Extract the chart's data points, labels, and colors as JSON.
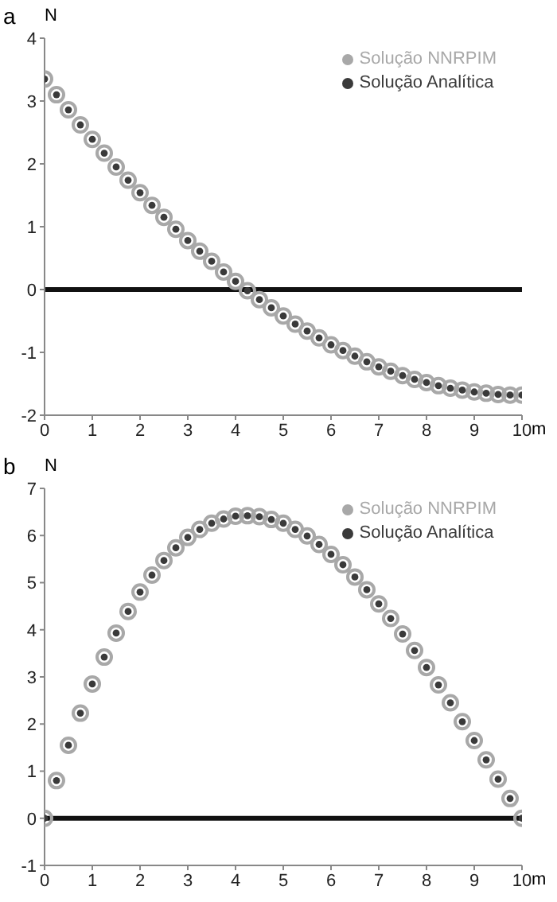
{
  "chart_data": [
    {
      "type": "scatter",
      "title": "a",
      "xlabel": "m",
      "ylabel": "N",
      "x": [
        0,
        0.25,
        0.5,
        0.75,
        1,
        1.25,
        1.5,
        1.75,
        2,
        2.25,
        2.5,
        2.75,
        3,
        3.25,
        3.5,
        3.75,
        4,
        4.25,
        4.5,
        4.75,
        5,
        5.25,
        5.5,
        5.75,
        6,
        6.25,
        6.5,
        6.75,
        7,
        7.25,
        7.5,
        7.75,
        8,
        8.25,
        8.5,
        8.75,
        9,
        9.25,
        9.5,
        9.75,
        10
      ],
      "series": [
        {
          "name": "Solução NNRPIM",
          "color": "#a8a8a8",
          "values": [
            3.35,
            3.1,
            2.86,
            2.62,
            2.39,
            2.17,
            1.95,
            1.74,
            1.54,
            1.34,
            1.15,
            0.96,
            0.78,
            0.61,
            0.45,
            0.28,
            0.13,
            -0.02,
            -0.16,
            -0.29,
            -0.42,
            -0.55,
            -0.66,
            -0.77,
            -0.88,
            -0.97,
            -1.06,
            -1.15,
            -1.23,
            -1.3,
            -1.37,
            -1.43,
            -1.48,
            -1.53,
            -1.57,
            -1.6,
            -1.63,
            -1.65,
            -1.67,
            -1.68,
            -1.68
          ]
        },
        {
          "name": "Solução Analítica",
          "color": "#3a3a3a",
          "values": [
            3.35,
            3.1,
            2.86,
            2.62,
            2.39,
            2.17,
            1.95,
            1.74,
            1.54,
            1.34,
            1.15,
            0.96,
            0.78,
            0.61,
            0.45,
            0.28,
            0.13,
            -0.02,
            -0.16,
            -0.29,
            -0.42,
            -0.55,
            -0.66,
            -0.77,
            -0.88,
            -0.97,
            -1.06,
            -1.15,
            -1.23,
            -1.3,
            -1.37,
            -1.43,
            -1.48,
            -1.53,
            -1.57,
            -1.6,
            -1.63,
            -1.65,
            -1.67,
            -1.68,
            -1.68
          ]
        }
      ],
      "xlim": [
        0,
        10
      ],
      "xticks": [
        0,
        1,
        2,
        3,
        4,
        5,
        6,
        7,
        8,
        9,
        10
      ],
      "ylim": [
        -2,
        4
      ],
      "yticks": [
        -2,
        -1,
        0,
        1,
        2,
        3,
        4
      ],
      "ref_lines": [
        {
          "axis": "y",
          "value": 0,
          "color": "#111111"
        }
      ],
      "legend": "top right",
      "marker": "circle",
      "grid": false
    },
    {
      "type": "scatter",
      "title": "b",
      "xlabel": "m",
      "ylabel": "N",
      "x": [
        0,
        0.25,
        0.5,
        0.75,
        1,
        1.25,
        1.5,
        1.75,
        2,
        2.25,
        2.5,
        2.75,
        3,
        3.25,
        3.5,
        3.75,
        4,
        4.25,
        4.5,
        4.75,
        5,
        5.25,
        5.5,
        5.75,
        6,
        6.25,
        6.5,
        6.75,
        7,
        7.25,
        7.5,
        7.75,
        8,
        8.25,
        8.5,
        8.75,
        9,
        9.25,
        9.5,
        9.75,
        10
      ],
      "series": [
        {
          "name": "Solução NNRPIM",
          "color": "#a8a8a8",
          "values": [
            0,
            0.8,
            1.55,
            2.23,
            2.85,
            3.42,
            3.93,
            4.39,
            4.8,
            5.16,
            5.47,
            5.74,
            5.96,
            6.13,
            6.26,
            6.35,
            6.41,
            6.42,
            6.4,
            6.34,
            6.26,
            6.13,
            5.99,
            5.81,
            5.6,
            5.38,
            5.12,
            4.85,
            4.55,
            4.24,
            3.91,
            3.56,
            3.2,
            2.83,
            2.45,
            2.05,
            1.65,
            1.24,
            0.83,
            0.42,
            0
          ]
        },
        {
          "name": "Solução Analítica",
          "color": "#3a3a3a",
          "values": [
            0,
            0.8,
            1.55,
            2.23,
            2.85,
            3.42,
            3.93,
            4.39,
            4.8,
            5.16,
            5.47,
            5.74,
            5.96,
            6.13,
            6.26,
            6.35,
            6.41,
            6.42,
            6.4,
            6.34,
            6.26,
            6.13,
            5.99,
            5.81,
            5.6,
            5.38,
            5.12,
            4.85,
            4.55,
            4.24,
            3.91,
            3.56,
            3.2,
            2.83,
            2.45,
            2.05,
            1.65,
            1.24,
            0.83,
            0.42,
            0
          ]
        }
      ],
      "xlim": [
        0,
        10
      ],
      "xticks": [
        0,
        1,
        2,
        3,
        4,
        5,
        6,
        7,
        8,
        9,
        10
      ],
      "ylim": [
        -1,
        7
      ],
      "yticks": [
        -1,
        0,
        1,
        2,
        3,
        4,
        5,
        6,
        7
      ],
      "ref_lines": [
        {
          "axis": "y",
          "value": 0,
          "color": "#111111"
        }
      ],
      "legend": "top right",
      "marker": "circle",
      "grid": false
    }
  ]
}
